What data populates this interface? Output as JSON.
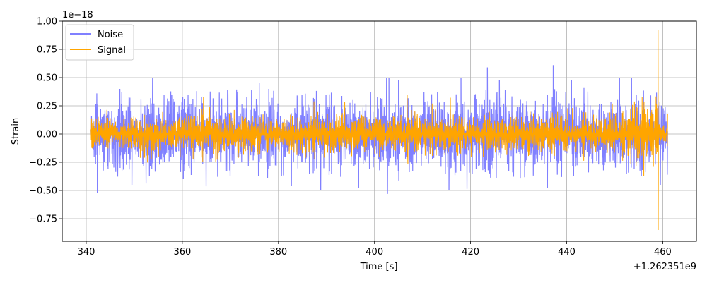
{
  "chart_data": {
    "type": "line",
    "title": "",
    "xlabel": "Time [s]",
    "ylabel": "Strain",
    "x_offset_label": "+1.262351e9",
    "y_scale_label": "1e−18",
    "xlim": [
      335,
      467
    ],
    "ylim": [
      -0.95,
      1.0
    ],
    "x_ticks": [
      340,
      360,
      380,
      400,
      420,
      440,
      460
    ],
    "x_tick_labels": [
      "340",
      "360",
      "380",
      "400",
      "420",
      "440",
      "460"
    ],
    "y_ticks": [
      -0.75,
      -0.5,
      -0.25,
      0.0,
      0.25,
      0.5,
      0.75,
      1.0
    ],
    "y_tick_labels": [
      "−0.75",
      "−0.50",
      "−0.25",
      "0.00",
      "0.25",
      "0.50",
      "0.75",
      "1.00"
    ],
    "grid": true,
    "legend_position": "top-left",
    "series": [
      {
        "name": "Noise",
        "color": "#8080ff",
        "x_range": [
          341,
          461
        ],
        "typical_amplitude": 0.15,
        "spikes": [
          {
            "x": 342.3,
            "y": -0.52
          },
          {
            "x": 347.0,
            "y": 0.4
          },
          {
            "x": 349.5,
            "y": -0.45
          },
          {
            "x": 357.8,
            "y": 0.35
          },
          {
            "x": 360.2,
            "y": -0.4
          },
          {
            "x": 363.0,
            "y": 0.38
          },
          {
            "x": 376.0,
            "y": 0.45
          },
          {
            "x": 378.0,
            "y": 0.4
          },
          {
            "x": 382.7,
            "y": -0.46
          },
          {
            "x": 388.8,
            "y": -0.5
          },
          {
            "x": 396.7,
            "y": -0.48
          },
          {
            "x": 402.7,
            "y": -0.53
          },
          {
            "x": 403.0,
            "y": 0.5
          },
          {
            "x": 405.0,
            "y": 0.48
          },
          {
            "x": 415.5,
            "y": -0.5
          },
          {
            "x": 418.0,
            "y": 0.5
          },
          {
            "x": 423.5,
            "y": 0.59
          },
          {
            "x": 426.0,
            "y": 0.48
          },
          {
            "x": 436.0,
            "y": -0.48
          },
          {
            "x": 437.2,
            "y": 0.61
          },
          {
            "x": 441.0,
            "y": 0.48
          },
          {
            "x": 451.0,
            "y": 0.5
          },
          {
            "x": 453.5,
            "y": 0.5
          },
          {
            "x": 459.5,
            "y": -0.45
          }
        ]
      },
      {
        "name": "Signal",
        "color": "#ffa500",
        "x_range": [
          341,
          461
        ],
        "typical_amplitude": 0.1,
        "spikes": [
          {
            "x": 406.8,
            "y": 0.35
          },
          {
            "x": 406.9,
            "y": -0.2
          },
          {
            "x": 459.0,
            "y": 0.92
          },
          {
            "x": 459.05,
            "y": -0.85
          }
        ]
      }
    ]
  }
}
